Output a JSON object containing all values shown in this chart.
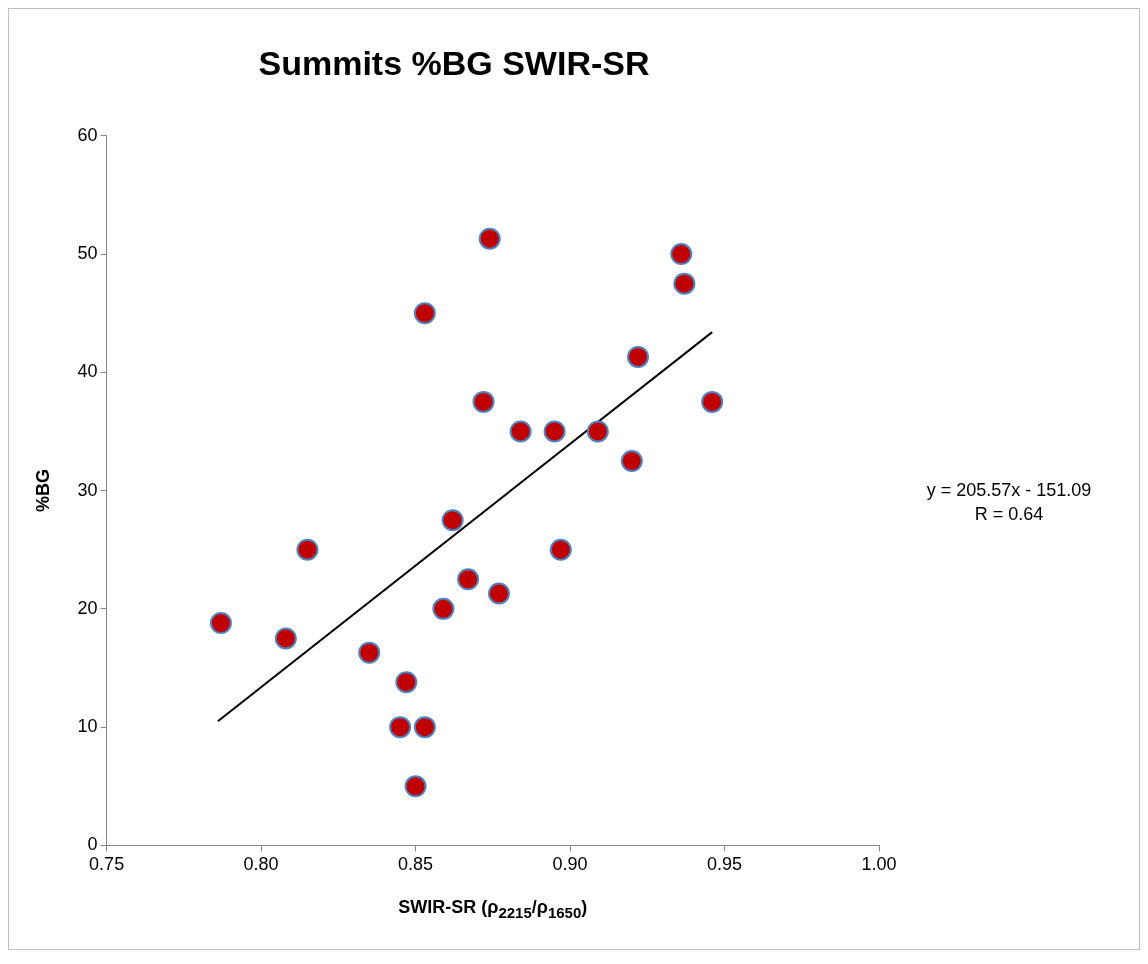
{
  "chart_data": {
    "type": "scatter",
    "title": "Summits %BG SWIR-SR",
    "xlabel": "SWIR-SR (ρ$_{2215}$/ρ$_{1650}$)",
    "ylabel": "%BG",
    "xlim": [
      0.75,
      1.0
    ],
    "xticks": [
      {
        "value": 0.75,
        "label": "0.75"
      },
      {
        "value": 0.8,
        "label": "0.80"
      },
      {
        "value": 0.85,
        "label": "0.85"
      },
      {
        "value": 0.9,
        "label": "0.90"
      },
      {
        "value": 0.95,
        "label": "0.95"
      },
      {
        "value": 1.0,
        "label": "1.00"
      }
    ],
    "ylim": [
      0,
      60
    ],
    "yticks": [
      0,
      10,
      20,
      30,
      40,
      50,
      60
    ],
    "grid": false,
    "legend": false,
    "series": [
      {
        "type": "scatter",
        "color": "#c00000",
        "marker": "circle",
        "x": [
          0.787,
          0.808,
          0.815,
          0.835,
          0.847,
          0.845,
          0.853,
          0.85,
          0.853,
          0.859,
          0.862,
          0.867,
          0.872,
          0.874,
          0.877,
          0.884,
          0.895,
          0.897,
          0.909,
          0.92,
          0.922,
          0.936,
          0.937,
          0.946
        ],
        "values": [
          18.8,
          17.5,
          25,
          16.3,
          13.8,
          10,
          10,
          5,
          45,
          20,
          27.5,
          22.5,
          37.5,
          51.3,
          21.3,
          35,
          35,
          25,
          35,
          32.5,
          41.3,
          50,
          47.5,
          37.5
        ]
      },
      {
        "type": "line",
        "color": "#000000",
        "marker": "none",
        "line_style": "solid",
        "x": [
          0.786,
          0.946
        ],
        "values": [
          10.5,
          43.4
        ]
      }
    ],
    "annotations": [
      "y = 205.57x - 151.09",
      "R = 0.64"
    ]
  }
}
